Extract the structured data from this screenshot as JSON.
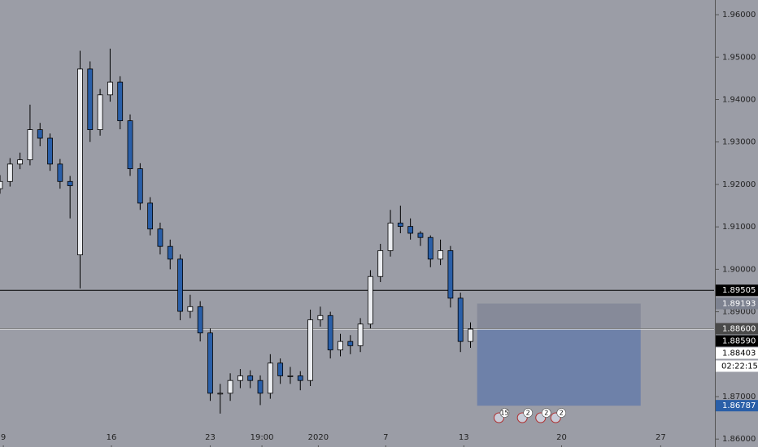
{
  "chart_data": {
    "type": "candlestick",
    "colors": {
      "up": "#eceef2",
      "down": "#2a5fa8",
      "wick": "#000000",
      "background": "#9b9da6"
    },
    "x": [
      0,
      3,
      6,
      9,
      12,
      15,
      18,
      21,
      24,
      27,
      30,
      33,
      36,
      39,
      42,
      45,
      48,
      51,
      54,
      57,
      60,
      63,
      66,
      69,
      72,
      75,
      78,
      81,
      84,
      87,
      90,
      93,
      96,
      99,
      102,
      105,
      108,
      111,
      114,
      117,
      120,
      123,
      126,
      129,
      132,
      135,
      138,
      141
    ],
    "open": [
      1.919,
      1.9207,
      1.9248,
      1.9258,
      1.9329,
      1.9309,
      1.9248,
      1.9207,
      1.9034,
      1.9472,
      1.9329,
      1.9411,
      1.9441,
      1.935,
      1.9237,
      1.9156,
      1.9095,
      1.9054,
      1.9024,
      1.8901,
      1.8912,
      1.885,
      1.8708,
      1.8708,
      1.8738,
      1.8749,
      1.8738,
      1.8708,
      1.8779,
      1.8749,
      1.8749,
      1.8738,
      1.8881,
      1.8891,
      1.881,
      1.883,
      1.882,
      1.8871,
      1.8983,
      1.9044,
      1.9109,
      1.9101,
      1.9085,
      1.9075,
      1.9024,
      1.9044,
      1.8932,
      1.883
    ],
    "high": [
      1.9222,
      1.9262,
      1.9275,
      1.9388,
      1.9345,
      1.932,
      1.926,
      1.922,
      1.9515,
      1.949,
      1.9425,
      1.952,
      1.9455,
      1.9365,
      1.925,
      1.917,
      1.911,
      1.907,
      1.9035,
      1.894,
      1.8925,
      1.886,
      1.873,
      1.8755,
      1.8765,
      1.8762,
      1.875,
      1.88,
      1.879,
      1.877,
      1.876,
      1.8905,
      1.8912,
      1.89,
      1.8848,
      1.8845,
      1.8885,
      1.8998,
      1.906,
      1.914,
      1.915,
      1.912,
      1.909,
      1.908,
      1.907,
      1.9055,
      1.8945,
      1.8875
    ],
    "low": [
      1.9178,
      1.9195,
      1.9236,
      1.9245,
      1.929,
      1.9232,
      1.919,
      1.912,
      1.8955,
      1.93,
      1.9315,
      1.9395,
      1.933,
      1.922,
      1.914,
      1.908,
      1.9035,
      1.9,
      1.888,
      1.8885,
      1.883,
      1.869,
      1.866,
      1.869,
      1.872,
      1.872,
      1.868,
      1.8695,
      1.873,
      1.873,
      1.8715,
      1.8725,
      1.8865,
      1.879,
      1.8795,
      1.88,
      1.8805,
      1.886,
      1.897,
      1.903,
      1.9085,
      1.907,
      1.9055,
      1.9005,
      1.901,
      1.891,
      1.8805,
      1.8815
    ],
    "close": [
      1.9207,
      1.9248,
      1.9258,
      1.9329,
      1.9309,
      1.9248,
      1.9207,
      1.9197,
      1.9472,
      1.9329,
      1.9411,
      1.9441,
      1.935,
      1.9237,
      1.9156,
      1.9095,
      1.9054,
      1.9024,
      1.8901,
      1.8912,
      1.885,
      1.8708,
      1.8708,
      1.8738,
      1.8749,
      1.8738,
      1.8708,
      1.8779,
      1.8749,
      1.8749,
      1.8738,
      1.8881,
      1.8891,
      1.881,
      1.883,
      1.882,
      1.8871,
      1.8983,
      1.9044,
      1.9109,
      1.9101,
      1.9085,
      1.9075,
      1.9024,
      1.9044,
      1.8932,
      1.883,
      1.8859
    ],
    "xlim": [
      0,
      214
    ],
    "ylim": [
      1.85813,
      1.96346
    ],
    "xticks": [
      {
        "value": 1,
        "label": "9"
      },
      {
        "value": 33.4,
        "label": "16"
      },
      {
        "value": 63,
        "label": "23"
      },
      {
        "value": 78.5,
        "label": "19:00"
      },
      {
        "value": 95.4,
        "label": "2020"
      },
      {
        "value": 115.6,
        "label": "7"
      },
      {
        "value": 139,
        "label": "13"
      },
      {
        "value": 168.3,
        "label": "20"
      },
      {
        "value": 198,
        "label": "27"
      }
    ],
    "yticks": [
      {
        "value": 1.86,
        "label": "1.86000"
      },
      {
        "value": 1.87,
        "label": "1.87000"
      },
      {
        "value": 1.88,
        "label": "1.88000"
      },
      {
        "value": 1.89,
        "label": "1.89000"
      },
      {
        "value": 1.9,
        "label": "1.90000"
      },
      {
        "value": 1.91,
        "label": "1.91000"
      },
      {
        "value": 1.92,
        "label": "1.92000"
      },
      {
        "value": 1.93,
        "label": "1.93000"
      },
      {
        "value": 1.94,
        "label": "1.94000"
      },
      {
        "value": 1.95,
        "label": "1.95000"
      },
      {
        "value": 1.96,
        "label": "1.96000"
      }
    ],
    "hlines": [
      {
        "value": 1.89505,
        "color": "#000000"
      },
      {
        "value": 1.886,
        "color": "#000000"
      },
      {
        "value": 1.8859,
        "color": "#ffffff"
      }
    ],
    "position": {
      "x": [
        143,
        192
      ],
      "stop": 1.89193,
      "entry": 1.886,
      "target": 1.86787
    },
    "price_labels": [
      {
        "value": 1.89505,
        "label": "1.89505",
        "color": "#000000"
      },
      {
        "value": 1.89193,
        "label": "1.89193",
        "color": "#7d8290"
      },
      {
        "value": 1.886,
        "label": "1.88600",
        "color": "#4a4a4a"
      },
      {
        "value": 1.8859,
        "label": "1.88590",
        "color": "#000000"
      },
      {
        "value": 1.88403,
        "label": "1.88403",
        "color": "#ffffff"
      },
      {
        "value": 1.86787,
        "label": "1.86787",
        "color": "#2a5fa8"
      }
    ],
    "countdown": "02:22:15",
    "events": [
      {
        "x": 150.5,
        "label": "15"
      },
      {
        "x": 157.5,
        "label": "2"
      },
      {
        "x": 163,
        "label": "2"
      },
      {
        "x": 167.5,
        "label": "2"
      }
    ]
  }
}
